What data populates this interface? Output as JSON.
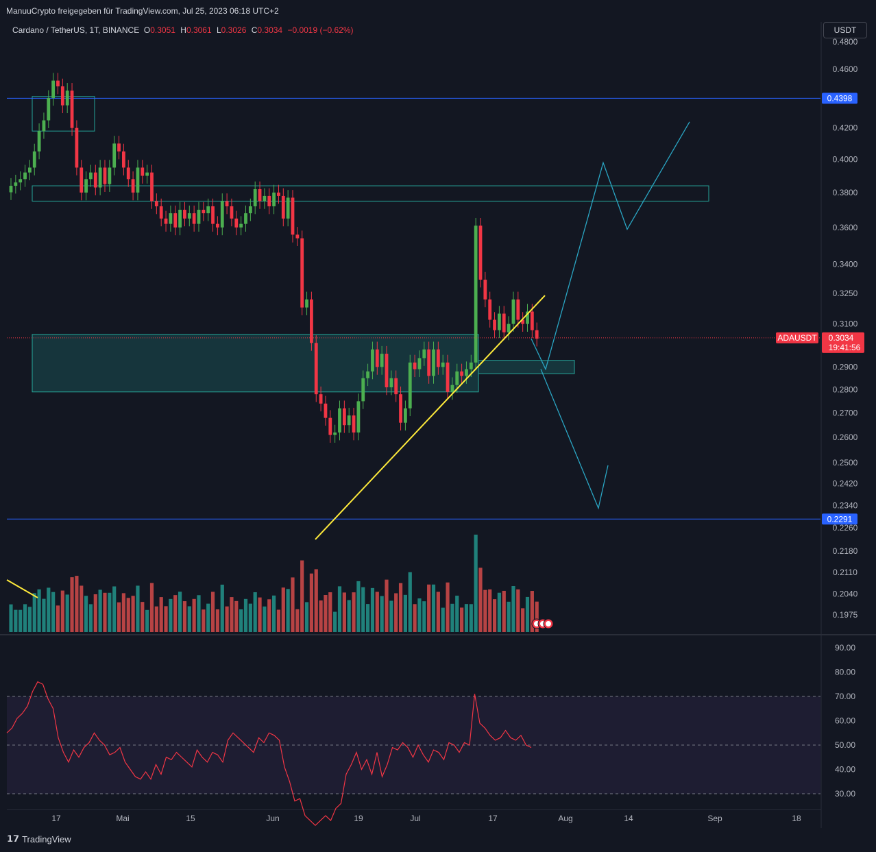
{
  "header": {
    "share_text": "ManuuCrypto freigegeben für TradingView.com, Jul 25, 2023 06:18 UTC+2",
    "symbol_desc": "Cardano / TetherUS, 1T, BINANCE",
    "o_label": "O",
    "o_value": "0.3051",
    "h_label": "H",
    "h_value": "0.3061",
    "l_label": "L",
    "l_value": "0.3026",
    "c_label": "C",
    "c_value": "0.3034",
    "change": "−0.0019 (−0.62%)",
    "currency": "USDT"
  },
  "footer": {
    "brand": "TradingView",
    "logo_icon": "tradingview-logo-icon"
  },
  "colors": {
    "bg": "#131722",
    "up": "#4caf50",
    "down": "#f23645",
    "vol_up": "#26a69a",
    "vol_down": "#ef5350",
    "zone": "#26a69a",
    "trend": "#ffeb3b",
    "level": "#2962ff",
    "projection": "#2aa6c4",
    "rsi": "#f23645"
  },
  "chart_data": [
    {
      "type": "candlestick",
      "symbol": "ADAUSDT",
      "price_axis": {
        "scale": "log",
        "ticks": [
          "0.4800",
          "0.4600",
          "0.4200",
          "0.4000",
          "0.3800",
          "0.3600",
          "0.3400",
          "0.3250",
          "0.3100",
          "0.2900",
          "0.2800",
          "0.2700",
          "0.2600",
          "0.2500",
          "0.2420",
          "0.2340",
          "0.2260",
          "0.2180",
          "0.2110",
          "0.2040",
          "0.1975"
        ]
      },
      "time_axis": {
        "ticks": [
          "17",
          "Mai",
          "15",
          "Jun",
          "19",
          "Jul",
          "17",
          "Aug",
          "14",
          "Sep",
          "18"
        ]
      },
      "current_price": {
        "label": "ADAUSDT",
        "value": "0.3034",
        "countdown": "19:41:56"
      },
      "horizontal_levels": [
        {
          "value": "0.4398"
        },
        {
          "value": "0.2291"
        }
      ],
      "zones": [
        {
          "from": "Apr 12",
          "to": "Apr 25",
          "low": 0.418,
          "high": 0.441
        },
        {
          "from": "Apr 12",
          "to": "Aug 31",
          "low": 0.375,
          "high": 0.384
        },
        {
          "from": "Apr 12",
          "to": "Jul 14",
          "low": 0.279,
          "high": 0.305
        },
        {
          "from": "Jul 14",
          "to": "Aug 3",
          "low": 0.287,
          "high": 0.293
        }
      ],
      "trendline": [
        {
          "t": "Jun 10",
          "p": 0.222
        },
        {
          "t": "Jul 25",
          "p": 0.324
        }
      ],
      "projection": [
        {
          "t": "Jul 25",
          "p": 0.303
        },
        {
          "t": "Jul 28",
          "p": 0.289
        },
        {
          "t": "Aug 9",
          "p": 0.398
        },
        {
          "t": "Aug 14",
          "p": 0.359
        },
        {
          "t": "Aug 27",
          "p": 0.424
        }
      ],
      "projection_alt": [
        {
          "t": "Jul 27",
          "p": 0.289
        },
        {
          "t": "Aug 8",
          "p": 0.233
        },
        {
          "t": "Aug 10",
          "p": 0.249
        }
      ],
      "closes": [
        0.384,
        0.386,
        0.388,
        0.392,
        0.395,
        0.405,
        0.418,
        0.425,
        0.44,
        0.452,
        0.448,
        0.435,
        0.445,
        0.42,
        0.395,
        0.38,
        0.388,
        0.392,
        0.383,
        0.395,
        0.385,
        0.395,
        0.41,
        0.405,
        0.395,
        0.388,
        0.38,
        0.395,
        0.39,
        0.392,
        0.375,
        0.372,
        0.365,
        0.362,
        0.368,
        0.36,
        0.37,
        0.365,
        0.368,
        0.362,
        0.37,
        0.368,
        0.372,
        0.362,
        0.36,
        0.375,
        0.372,
        0.365,
        0.36,
        0.362,
        0.368,
        0.372,
        0.382,
        0.375,
        0.378,
        0.372,
        0.38,
        0.378,
        0.365,
        0.377,
        0.356,
        0.354,
        0.318,
        0.322,
        0.301,
        0.278,
        0.274,
        0.268,
        0.261,
        0.262,
        0.272,
        0.265,
        0.269,
        0.262,
        0.275,
        0.285,
        0.288,
        0.298,
        0.29,
        0.296,
        0.281,
        0.285,
        0.278,
        0.266,
        0.272,
        0.292,
        0.289,
        0.294,
        0.298,
        0.286,
        0.298,
        0.29,
        0.292,
        0.279,
        0.282,
        0.288,
        0.286,
        0.289,
        0.292,
        0.361,
        0.332,
        0.322,
        0.312,
        0.307,
        0.315,
        0.306,
        0.31,
        0.322,
        0.312,
        0.31,
        0.316,
        0.307,
        0.303
      ],
      "rsi": {
        "ticks": [
          "90.00",
          "80.00",
          "70.00",
          "60.00",
          "50.00",
          "40.00",
          "30.00"
        ],
        "bands": [
          70,
          50,
          30
        ],
        "values": [
          55,
          57,
          61,
          63,
          66,
          72,
          76,
          75,
          69,
          65,
          53,
          47,
          43,
          48,
          45,
          49,
          51,
          55,
          52,
          50,
          46,
          47,
          49,
          43,
          40,
          37,
          36,
          39,
          36,
          42,
          38,
          45,
          44,
          47,
          45,
          43,
          41,
          48,
          45,
          43,
          47,
          46,
          43,
          52,
          55,
          53,
          51,
          49,
          47,
          53,
          51,
          55,
          54,
          52,
          41,
          35,
          27,
          28,
          21,
          19,
          17,
          19,
          21,
          19,
          24,
          26,
          38,
          42,
          47,
          40,
          44,
          38,
          47,
          37,
          42,
          49,
          48,
          51,
          49,
          45,
          50,
          46,
          43,
          48,
          47,
          44,
          51,
          50,
          47,
          51,
          50,
          71,
          59,
          57,
          54,
          52,
          53,
          56,
          53,
          52,
          54,
          50,
          49
        ]
      }
    }
  ]
}
